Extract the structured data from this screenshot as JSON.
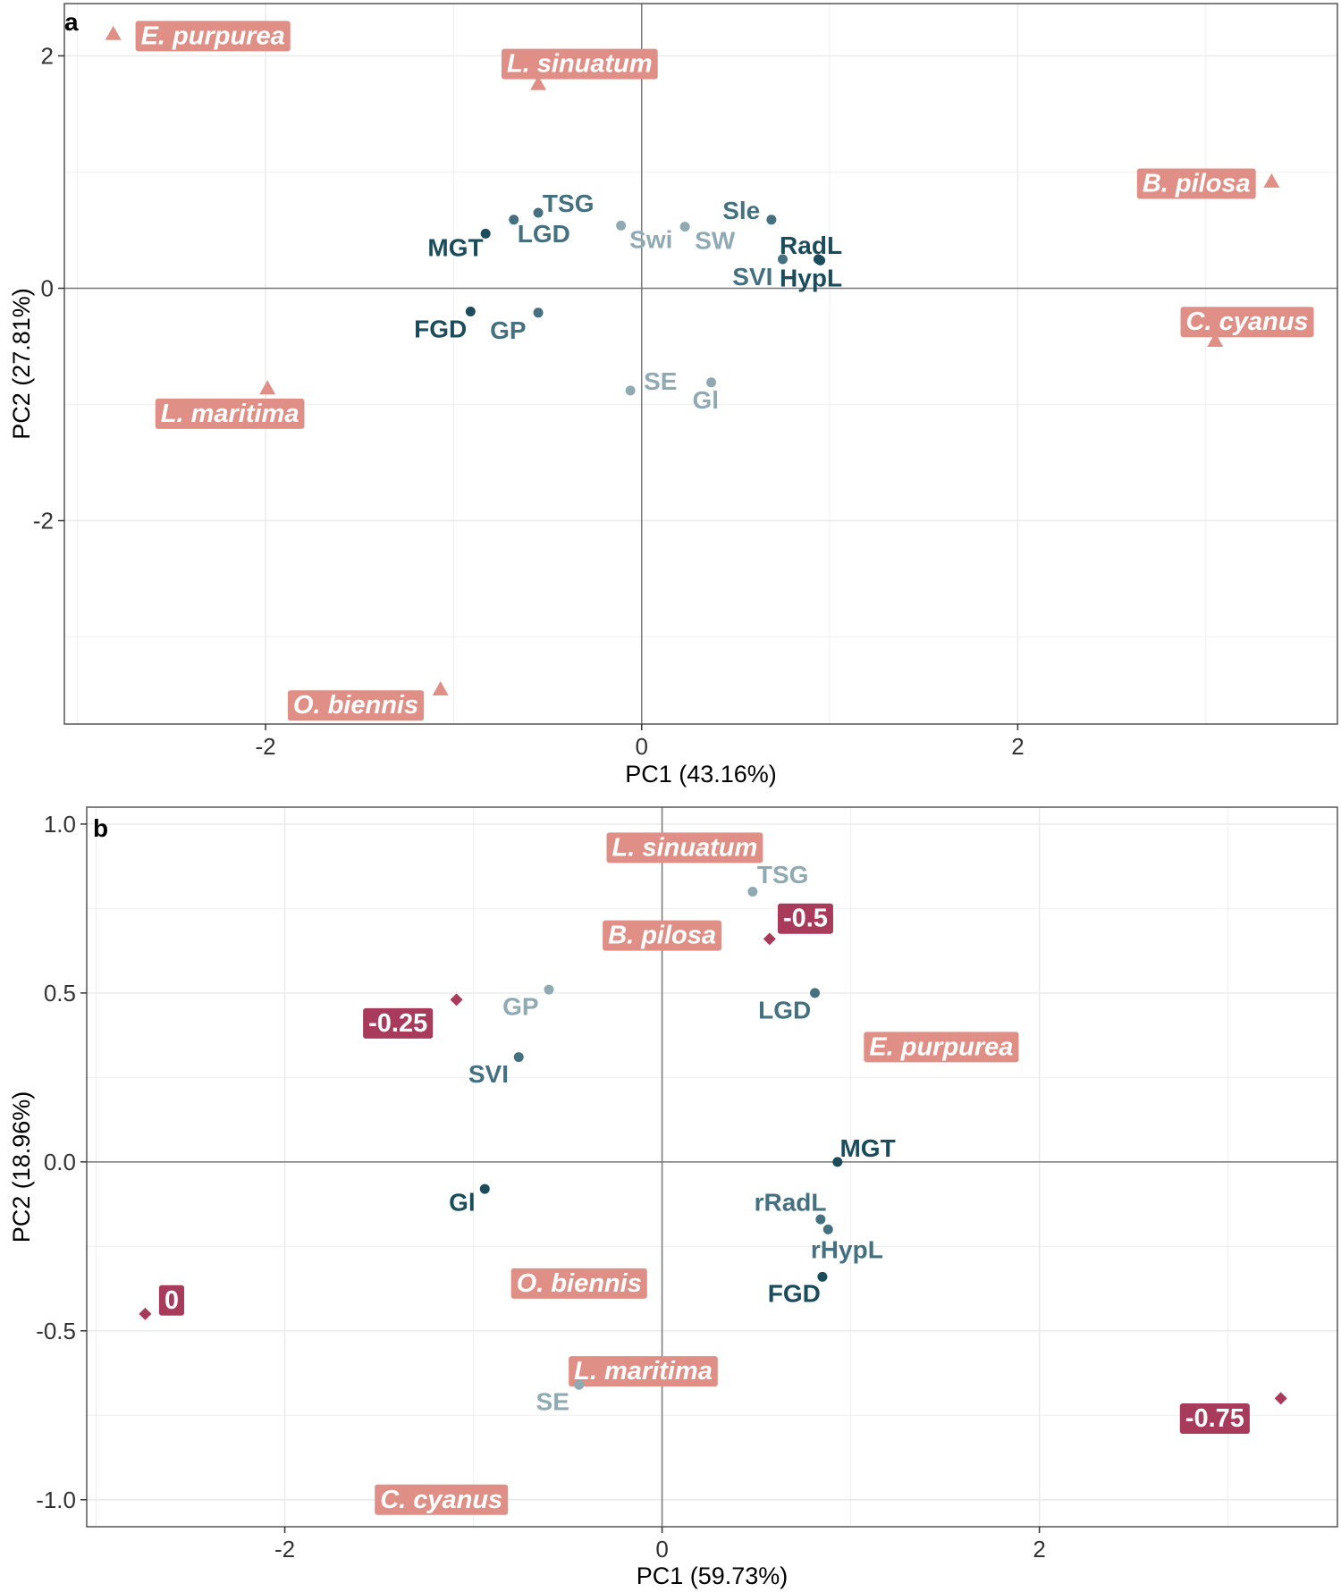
{
  "colors": {
    "species": "#e08f86",
    "level": "#a83a5b",
    "dark": "#1b4c5c",
    "mid": "#44707f",
    "light": "#90aab3",
    "grid": "#ebebeb",
    "zero": "#7a7a7a",
    "border": "#555555"
  },
  "chart_data": [
    {
      "type": "scatter",
      "panel": "a",
      "title": "",
      "xlabel": "PC1 (43.16%)",
      "ylabel": "PC2 (27.81%)",
      "xlim": [
        -3.07,
        3.7
      ],
      "ylim": [
        -3.75,
        2.45
      ],
      "xticks": [
        -2,
        0,
        2
      ],
      "xtick_labels": [
        "-2",
        "0",
        "2"
      ],
      "yticks": [
        -2,
        0,
        2
      ],
      "ytick_labels": [
        "-2",
        "0",
        "2"
      ],
      "variables": [
        {
          "label": "TSG",
          "x": -0.55,
          "y": 0.65,
          "shade": "mid",
          "ldx": 0.16,
          "ldy": 0.08
        },
        {
          "label": "LGD",
          "x": -0.68,
          "y": 0.59,
          "shade": "mid",
          "ldx": 0.16,
          "ldy": -0.12
        },
        {
          "label": "MGT",
          "x": -0.83,
          "y": 0.47,
          "shade": "dark",
          "ldx": -0.16,
          "ldy": -0.12
        },
        {
          "label": "Swi",
          "x": -0.11,
          "y": 0.54,
          "shade": "light",
          "ldx": 0.16,
          "ldy": -0.12
        },
        {
          "label": "SW",
          "x": 0.23,
          "y": 0.53,
          "shade": "light",
          "ldx": 0.16,
          "ldy": -0.12
        },
        {
          "label": "Sle",
          "x": 0.69,
          "y": 0.59,
          "shade": "mid",
          "ldx": -0.16,
          "ldy": 0.08
        },
        {
          "label": "RadL",
          "x": 0.94,
          "y": 0.25,
          "shade": "dark",
          "ldx": -0.04,
          "ldy": 0.12
        },
        {
          "label": "HypL",
          "x": 0.95,
          "y": 0.24,
          "shade": "dark",
          "ldx": -0.05,
          "ldy": -0.15
        },
        {
          "label": "SVI",
          "x": 0.75,
          "y": 0.25,
          "shade": "mid",
          "ldx": -0.16,
          "ldy": -0.15
        },
        {
          "label": "FGD",
          "x": -0.91,
          "y": -0.2,
          "shade": "dark",
          "ldx": -0.16,
          "ldy": -0.15
        },
        {
          "label": "GP",
          "x": -0.55,
          "y": -0.21,
          "shade": "mid",
          "ldx": -0.16,
          "ldy": -0.15
        },
        {
          "label": "SE",
          "x": -0.06,
          "y": -0.88,
          "shade": "light",
          "ldx": 0.16,
          "ldy": 0.08
        },
        {
          "label": "Gl",
          "x": 0.37,
          "y": -0.81,
          "shade": "light",
          "ldx": -0.03,
          "ldy": -0.15
        }
      ],
      "species": [
        {
          "label": "E. purpurea",
          "x": -2.81,
          "y": 2.19,
          "lx": -2.28,
          "ly": 2.17
        },
        {
          "label": "L. sinuatum",
          "x": -0.55,
          "y": 1.76,
          "lx": -0.33,
          "ly": 1.93
        },
        {
          "label": "B. pilosa",
          "x": 3.35,
          "y": 0.92,
          "lx": 2.95,
          "ly": 0.9
        },
        {
          "label": "C. cyanus",
          "x": 3.05,
          "y": -0.45,
          "lx": 3.22,
          "ly": -0.29
        },
        {
          "label": "L. maritima",
          "x": -1.99,
          "y": -0.86,
          "lx": -2.19,
          "ly": -1.08
        },
        {
          "label": "O. biennis",
          "x": -1.07,
          "y": -3.45,
          "lx": -1.52,
          "ly": -3.59
        }
      ],
      "levels": []
    },
    {
      "type": "scatter",
      "panel": "b",
      "title": "",
      "xlabel": "PC1 (59.73%)",
      "ylabel": "PC2 (18.96%)",
      "xlim": [
        -3.05,
        3.58
      ],
      "ylim": [
        -1.08,
        1.05
      ],
      "xticks": [
        -2,
        0,
        2
      ],
      "xtick_labels": [
        "-2",
        "0",
        "2"
      ],
      "yticks": [
        -1.0,
        -0.5,
        0.0,
        0.5,
        1.0
      ],
      "ytick_labels": [
        "-1.0",
        "-0.5",
        "0.0",
        "0.5",
        "1.0"
      ],
      "variables": [
        {
          "label": "TSG",
          "x": 0.48,
          "y": 0.8,
          "shade": "light",
          "ldx": 0.16,
          "ldy": 0.05
        },
        {
          "label": "LGD",
          "x": 0.81,
          "y": 0.5,
          "shade": "mid",
          "ldx": -0.16,
          "ldy": -0.05
        },
        {
          "label": "GP",
          "x": -0.6,
          "y": 0.51,
          "shade": "light",
          "ldx": -0.15,
          "ldy": -0.05
        },
        {
          "label": "SVI",
          "x": -0.76,
          "y": 0.31,
          "shade": "mid",
          "ldx": -0.16,
          "ldy": -0.05
        },
        {
          "label": "MGT",
          "x": 0.93,
          "y": 0.0,
          "shade": "dark",
          "ldx": 0.16,
          "ldy": 0.04
        },
        {
          "label": "Gl",
          "x": -0.94,
          "y": -0.08,
          "shade": "dark",
          "ldx": -0.12,
          "ldy": -0.04
        },
        {
          "label": "rRadL",
          "x": 0.84,
          "y": -0.17,
          "shade": "mid",
          "ldx": -0.16,
          "ldy": 0.05
        },
        {
          "label": "rHypL",
          "x": 0.88,
          "y": -0.2,
          "shade": "mid",
          "ldx": 0.1,
          "ldy": -0.06
        },
        {
          "label": "FGD",
          "x": 0.85,
          "y": -0.34,
          "shade": "dark",
          "ldx": -0.15,
          "ldy": -0.05
        },
        {
          "label": "SE",
          "x": -0.44,
          "y": -0.66,
          "shade": "light",
          "ldx": -0.14,
          "ldy": -0.05
        }
      ],
      "species": [
        {
          "label": "L. sinuatum",
          "x": 0.12,
          "y": 0.93,
          "lx": 0.12,
          "ly": 0.93
        },
        {
          "label": "B. pilosa",
          "x": 0.0,
          "y": 0.67,
          "lx": 0.0,
          "ly": 0.67
        },
        {
          "label": "E. purpurea",
          "x": 1.48,
          "y": 0.34,
          "lx": 1.48,
          "ly": 0.34
        },
        {
          "label": "O. biennis",
          "x": -0.44,
          "y": -0.36,
          "lx": -0.44,
          "ly": -0.36
        },
        {
          "label": "L. maritima",
          "x": -0.1,
          "y": -0.62,
          "lx": -0.1,
          "ly": -0.62
        },
        {
          "label": "C. cyanus",
          "x": -1.17,
          "y": -1.0,
          "lx": -1.17,
          "ly": -1.0
        }
      ],
      "levels": [
        {
          "label": "-0.5",
          "x": 0.57,
          "y": 0.66,
          "lx": 0.76,
          "ly": 0.72
        },
        {
          "label": "-0.25",
          "x": -1.09,
          "y": 0.48,
          "lx": -1.4,
          "ly": 0.41
        },
        {
          "label": "0",
          "x": -2.74,
          "y": -0.45,
          "lx": -2.6,
          "ly": -0.41
        },
        {
          "label": "-0.75",
          "x": 3.28,
          "y": -0.7,
          "lx": 2.93,
          "ly": -0.76
        }
      ]
    }
  ]
}
